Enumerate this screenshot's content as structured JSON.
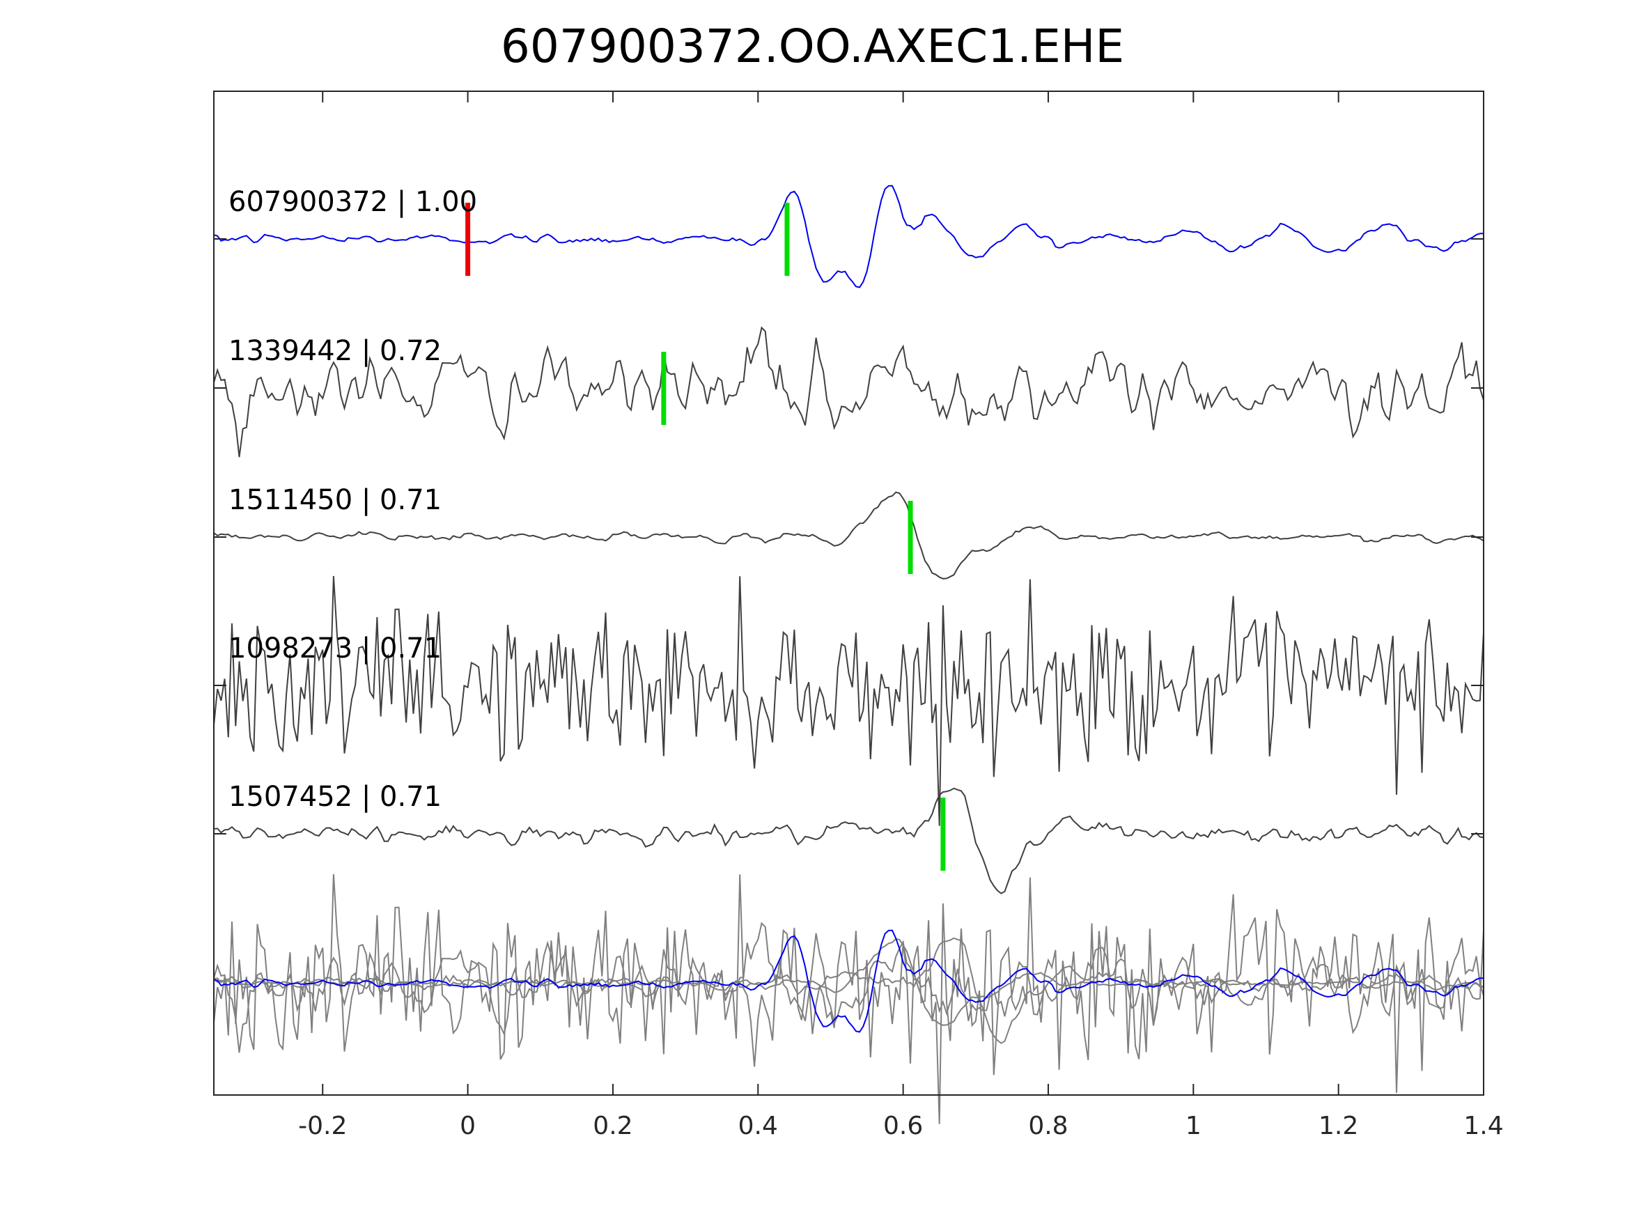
{
  "chart_data": {
    "type": "line",
    "title": "607900372.OO.AXEC1.EHE",
    "xlabel": "",
    "ylabel": "",
    "xlim": [
      -0.35,
      1.4
    ],
    "xticks": [
      -0.2,
      0,
      0.2,
      0.4,
      0.6,
      0.8,
      1.0,
      1.2,
      1.4
    ],
    "xtick_labels": [
      "-0.2",
      "0",
      "0.2",
      "0.4",
      "0.6",
      "0.8",
      "1",
      "1.2",
      "1.4"
    ],
    "grid": false,
    "colors": {
      "reference": "#0000ee",
      "neighbor": "#404040",
      "stack": "#808080",
      "pick_red": "#ee0000",
      "pick_green": "#00dd00"
    },
    "series": [
      {
        "label": "607900372 | 1.00",
        "id": "607900372",
        "cc": 1.0,
        "role": "reference",
        "picks": [
          {
            "time": 0.0,
            "color": "red"
          },
          {
            "time": 0.44,
            "color": "green"
          }
        ]
      },
      {
        "label": "1339442 | 0.72",
        "id": "1339442",
        "cc": 0.72,
        "role": "neighbor",
        "picks": [
          {
            "time": 0.27,
            "color": "green"
          }
        ]
      },
      {
        "label": "1511450 | 0.71",
        "id": "1511450",
        "cc": 0.71,
        "role": "neighbor",
        "picks": [
          {
            "time": 0.61,
            "color": "green"
          }
        ]
      },
      {
        "label": "1098273 | 0.71",
        "id": "1098273",
        "cc": 0.71,
        "role": "neighbor",
        "picks": []
      },
      {
        "label": "1507452 | 0.71",
        "id": "1507452",
        "cc": 0.71,
        "role": "neighbor",
        "picks": [
          {
            "time": 0.655,
            "color": "green"
          }
        ]
      }
    ]
  }
}
